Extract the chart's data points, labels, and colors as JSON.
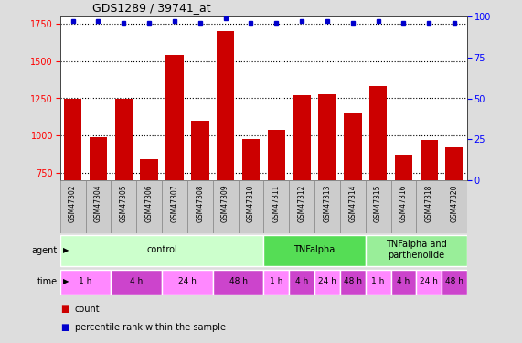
{
  "title": "GDS1289 / 39741_at",
  "samples": [
    "GSM47302",
    "GSM47304",
    "GSM47305",
    "GSM47306",
    "GSM47307",
    "GSM47308",
    "GSM47309",
    "GSM47310",
    "GSM47311",
    "GSM47312",
    "GSM47313",
    "GSM47314",
    "GSM47315",
    "GSM47316",
    "GSM47318",
    "GSM47320"
  ],
  "bar_values": [
    1250,
    990,
    1250,
    840,
    1540,
    1100,
    1700,
    975,
    1040,
    1270,
    1280,
    1150,
    1330,
    870,
    970,
    920
  ],
  "percentile_values": [
    97,
    97,
    96,
    96,
    97,
    96,
    99,
    96,
    96,
    97,
    97,
    96,
    97,
    96,
    96,
    96
  ],
  "bar_color": "#cc0000",
  "percentile_color": "#0000cc",
  "ylim_left": [
    700,
    1800
  ],
  "ylim_right": [
    0,
    100
  ],
  "yticks_left": [
    750,
    1000,
    1250,
    1500,
    1750
  ],
  "yticks_right": [
    0,
    25,
    50,
    75,
    100
  ],
  "agent_groups": [
    {
      "label": "control",
      "start": 0,
      "end": 8,
      "color": "#ccffcc"
    },
    {
      "label": "TNFalpha",
      "start": 8,
      "end": 12,
      "color": "#55dd55"
    },
    {
      "label": "TNFalpha and\nparthenolide",
      "start": 12,
      "end": 16,
      "color": "#99ee99"
    }
  ],
  "time_groups": [
    {
      "label": "1 h",
      "start": 0,
      "end": 2,
      "color": "#ff88ff"
    },
    {
      "label": "4 h",
      "start": 2,
      "end": 4,
      "color": "#cc44cc"
    },
    {
      "label": "24 h",
      "start": 4,
      "end": 6,
      "color": "#ff88ff"
    },
    {
      "label": "48 h",
      "start": 6,
      "end": 8,
      "color": "#cc44cc"
    },
    {
      "label": "1 h",
      "start": 8,
      "end": 9,
      "color": "#ff88ff"
    },
    {
      "label": "4 h",
      "start": 9,
      "end": 10,
      "color": "#cc44cc"
    },
    {
      "label": "24 h",
      "start": 10,
      "end": 11,
      "color": "#ff88ff"
    },
    {
      "label": "48 h",
      "start": 11,
      "end": 12,
      "color": "#cc44cc"
    },
    {
      "label": "1 h",
      "start": 12,
      "end": 13,
      "color": "#ff88ff"
    },
    {
      "label": "4 h",
      "start": 13,
      "end": 14,
      "color": "#cc44cc"
    },
    {
      "label": "24 h",
      "start": 14,
      "end": 15,
      "color": "#ff88ff"
    },
    {
      "label": "48 h",
      "start": 15,
      "end": 16,
      "color": "#cc44cc"
    }
  ],
  "legend_count_label": "count",
  "legend_percentile_label": "percentile rank within the sample",
  "background_color": "#dddddd",
  "plot_bg_color": "#ffffff",
  "sample_cell_color": "#cccccc",
  "sample_cell_border": "#888888"
}
